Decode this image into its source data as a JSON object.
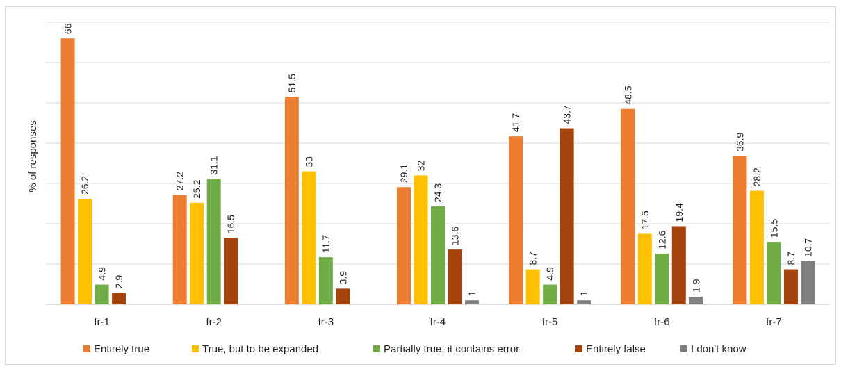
{
  "chart_data": {
    "type": "bar",
    "ylabel": "% of responses",
    "xlabel": "",
    "ylim": [
      0,
      70
    ],
    "grid": true,
    "legend_position": "bottom",
    "categories": [
      "fr-1",
      "fr-2",
      "fr-3",
      "fr-4",
      "fr-5",
      "fr-6",
      "fr-7"
    ],
    "series": [
      {
        "name": "Entirely true",
        "color": "#ED7D31",
        "values": [
          66,
          27.2,
          51.5,
          29.1,
          41.7,
          48.5,
          36.9
        ]
      },
      {
        "name": "True, but to be expanded",
        "color": "#FFC000",
        "values": [
          26.2,
          25.2,
          33,
          32,
          8.7,
          17.5,
          28.2
        ]
      },
      {
        "name": "Partially true, it contains error",
        "color": "#70AD47",
        "values": [
          4.9,
          31.1,
          11.7,
          24.3,
          4.9,
          12.6,
          15.5
        ]
      },
      {
        "name": "Entirely false",
        "color": "#A5430C",
        "values": [
          2.9,
          16.5,
          3.9,
          13.6,
          43.7,
          19.4,
          8.7
        ]
      },
      {
        "name": "I don't know",
        "color": "#808080",
        "values": [
          null,
          null,
          null,
          1,
          1,
          1.9,
          10.7
        ]
      }
    ]
  }
}
